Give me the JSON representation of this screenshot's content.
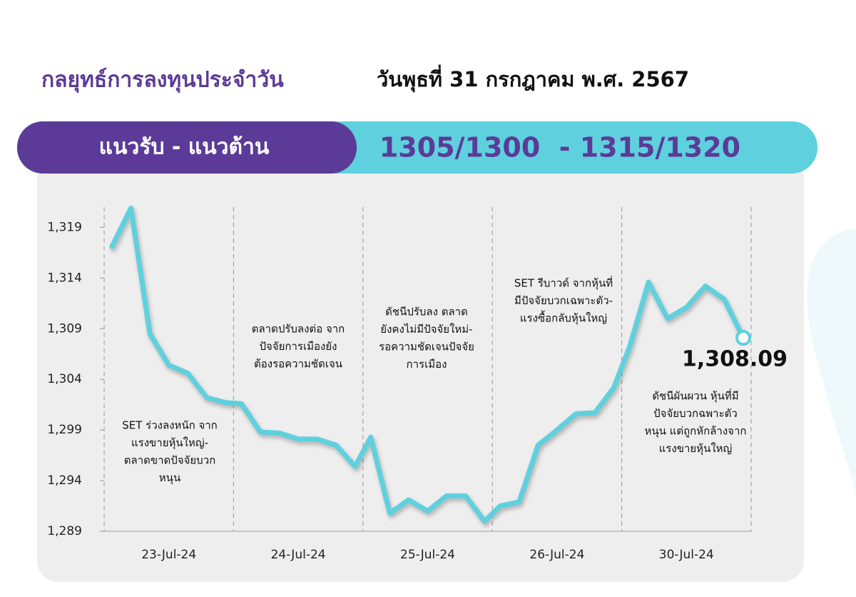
{
  "header": {
    "title": "กลยุทธ์การลงทุนประจำวัน",
    "date": "วันพุธที่ 31 กรกฎาคม พ.ศ. 2567",
    "range_label": "แนวรับ - แนวต้าน",
    "range_values": "1305/1300  - 1315/1320"
  },
  "chart_data": {
    "type": "line",
    "color": "#5fd0de",
    "categories": [
      "23-Jul-24",
      "24-Jul-24",
      "25-Jul-24",
      "26-Jul-24",
      "30-Jul-24"
    ],
    "values": [
      [
        1317.1,
        1320.9,
        1308.5,
        1305.4,
        1304.6,
        1302.2,
        1301.7
      ],
      [
        1301.6,
        1298.8,
        1298.7,
        1298.1,
        1298.1,
        1297.5,
        1295.4
      ],
      [
        1298.3,
        1290.8,
        1292.1,
        1291.0,
        1292.5,
        1292.5,
        1290.0
      ],
      [
        1291.5,
        1291.9,
        1297.5,
        1299.0,
        1300.6,
        1300.7,
        1303.2
      ],
      [
        1307.2,
        1313.6,
        1310.0,
        1311.1,
        1313.2,
        1311.9,
        1308.09
      ]
    ],
    "value_labels": [
      [
        null,
        null,
        null,
        null,
        null,
        null,
        null
      ],
      [
        null,
        null,
        null,
        null,
        null,
        null,
        null
      ],
      [
        null,
        null,
        null,
        null,
        null,
        null,
        null
      ],
      [
        null,
        null,
        null,
        null,
        null,
        null,
        null
      ],
      [
        null,
        null,
        null,
        null,
        null,
        null,
        "1,308.09"
      ]
    ],
    "ylim": [
      1289,
      1321
    ],
    "yticks": [
      {
        "value": 1289,
        "label": "1,289"
      },
      {
        "value": 1294,
        "label": "1,294"
      },
      {
        "value": 1299,
        "label": "1,299"
      },
      {
        "value": 1304,
        "label": "1,304"
      },
      {
        "value": 1309,
        "label": "1,309"
      },
      {
        "value": 1314,
        "label": "1,314"
      },
      {
        "value": 1319,
        "label": "1,319"
      }
    ],
    "annotations": [
      [
        "SET ร่วงลงหนัก จาก",
        "แรงขายหุ้นใหญ่-",
        "ตลาดขาดปัจจัยบวก",
        "หนุน"
      ],
      [
        "ตลาดปรับลงต่อ จาก",
        "ปัจจัยการเมืองยัง",
        "ต้องรอความชัดเจน"
      ],
      [
        "ดัชนีปรับลง ตลาด",
        "ยังคงไม่มีปัจจัยใหม่-",
        "รอความชัดเจนปัจจัย",
        "การเมือง"
      ],
      [
        "SET รีบาวด์ จากหุ้นที่",
        "มีปัจจัยบวกเฉพาะตัว-",
        "แรงซื้อกลับหุ้นใหญ่"
      ],
      [
        "ดัชนีผันผวน หุ้นที่มี",
        "ปัจจัยบวกฉพาะตัว",
        "หนุน แต่ถูกหักล้างจาก",
        "แรงขายหุ้นใหญ่"
      ]
    ]
  }
}
